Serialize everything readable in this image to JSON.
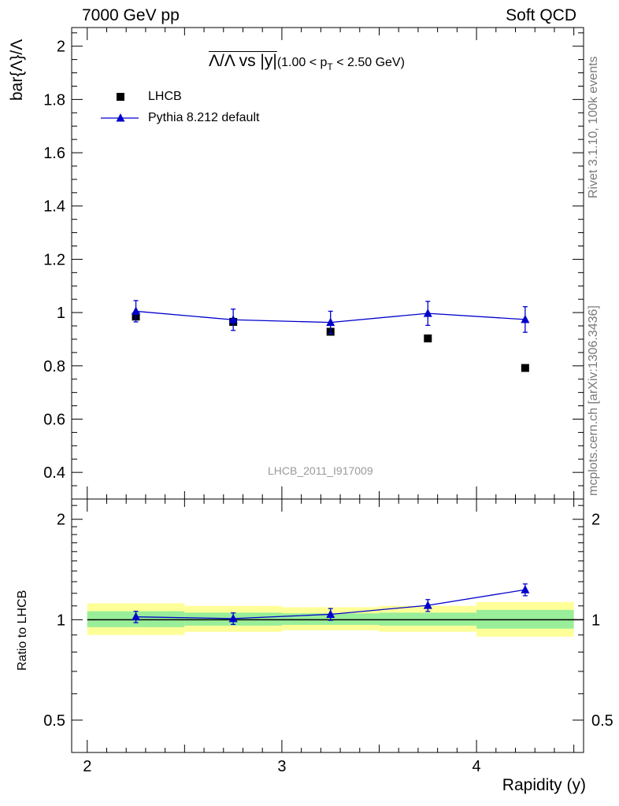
{
  "header": {
    "left": "7000 GeV pp",
    "right": "Soft QCD"
  },
  "side_labels": {
    "rivet": "Rivet 3.1.10,  100k events",
    "source": "mcplots.cern.ch [arXiv:1306.3436]"
  },
  "plot": {
    "title_main": "Λ/Λ vs |y|",
    "title_sub": "(1.00 < p",
    "title_sub_index": "T",
    "title_sub_end": " < 2.50 GeV)",
    "watermark": "LHCB_2011_I917009",
    "ylabel": "bar{Λ}/Λ",
    "ratio_ylabel": "Ratio to LHCB",
    "xlabel": "Rapidity (y)"
  },
  "legend": {
    "data_label": "LHCB",
    "mc_label": "Pythia 8.212 default"
  },
  "colors": {
    "mc": "#0000cc",
    "data": "#000000",
    "band_inner": "#99ee99",
    "band_outer": "#ffff99"
  },
  "chart_data": [
    {
      "type": "scatter",
      "title": "Λ/Λ vs |y|(1.00 < pT < 2.50 GeV)",
      "xlabel": "Rapidity (y)",
      "ylabel": "bar{Λ}/Λ",
      "xlim": [
        1.92,
        4.55
      ],
      "ylim": [
        0.3,
        2.07
      ],
      "yticks": [
        "0.4",
        "0.6",
        "0.8",
        "1",
        "1.2",
        "1.4",
        "1.6",
        "1.8",
        "2"
      ],
      "series": [
        {
          "name": "LHCB",
          "x": [
            2.25,
            2.75,
            3.25,
            3.75,
            4.25
          ],
          "y": [
            0.985,
            0.965,
            0.928,
            0.903,
            0.792
          ]
        },
        {
          "name": "Pythia 8.212 default",
          "x": [
            2.25,
            2.75,
            3.25,
            3.75,
            4.25
          ],
          "y": [
            1.005,
            0.973,
            0.963,
            0.997,
            0.974
          ],
          "yerr": [
            0.04,
            0.04,
            0.042,
            0.045,
            0.048
          ]
        }
      ]
    },
    {
      "type": "line",
      "title": "",
      "xlabel": "Rapidity (y)",
      "ylabel": "Ratio to LHCB",
      "scale": "log",
      "xlim": [
        1.92,
        4.55
      ],
      "ylim": [
        0.4,
        2.3
      ],
      "yticks": [
        "0.5",
        "1",
        "2"
      ],
      "xticks": [
        "2",
        "3",
        "4"
      ],
      "band_edges": [
        2.0,
        2.5,
        3.0,
        3.5,
        4.0,
        4.5
      ],
      "band_inner": [
        [
          0.95,
          1.06
        ],
        [
          0.96,
          1.05
        ],
        [
          0.965,
          1.045
        ],
        [
          0.96,
          1.05
        ],
        [
          0.94,
          1.07
        ]
      ],
      "band_outer": [
        [
          0.9,
          1.12
        ],
        [
          0.92,
          1.1
        ],
        [
          0.93,
          1.09
        ],
        [
          0.92,
          1.1
        ],
        [
          0.89,
          1.13
        ]
      ],
      "series": [
        {
          "name": "Pythia 8.212 default",
          "x": [
            2.25,
            2.75,
            3.25,
            3.75,
            4.25
          ],
          "y": [
            1.02,
            1.008,
            1.038,
            1.104,
            1.23
          ],
          "yerr": [
            0.04,
            0.04,
            0.042,
            0.045,
            0.05
          ]
        }
      ]
    }
  ]
}
